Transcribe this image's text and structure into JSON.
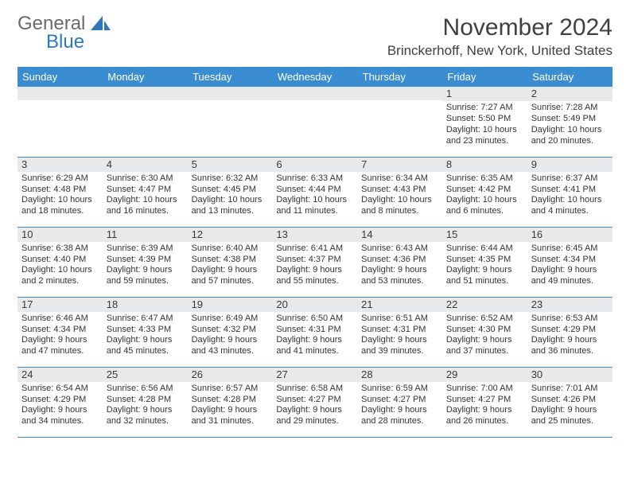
{
  "logo": {
    "word1": "General",
    "word2": "Blue",
    "shape_color": "#2d77bd"
  },
  "title": "November 2024",
  "location": "Brinckerhoff, New York, United States",
  "colors": {
    "header_bg": "#3a8dd0",
    "header_text": "#ffffff",
    "daynum_bg": "#e8e9ea",
    "divider": "#3a8dd0",
    "body_text": "#333333"
  },
  "fonts": {
    "title_size": 30,
    "location_size": 17,
    "dow_size": 13,
    "daynum_size": 13,
    "body_size": 11
  },
  "day_labels": [
    "Sunday",
    "Monday",
    "Tuesday",
    "Wednesday",
    "Thursday",
    "Friday",
    "Saturday"
  ],
  "weeks": [
    [
      {
        "n": "",
        "lines": [
          "",
          "",
          "",
          ""
        ]
      },
      {
        "n": "",
        "lines": [
          "",
          "",
          "",
          ""
        ]
      },
      {
        "n": "",
        "lines": [
          "",
          "",
          "",
          ""
        ]
      },
      {
        "n": "",
        "lines": [
          "",
          "",
          "",
          ""
        ]
      },
      {
        "n": "",
        "lines": [
          "",
          "",
          "",
          ""
        ]
      },
      {
        "n": "1",
        "lines": [
          "Sunrise: 7:27 AM",
          "Sunset: 5:50 PM",
          "Daylight: 10 hours",
          "and 23 minutes."
        ]
      },
      {
        "n": "2",
        "lines": [
          "Sunrise: 7:28 AM",
          "Sunset: 5:49 PM",
          "Daylight: 10 hours",
          "and 20 minutes."
        ]
      }
    ],
    [
      {
        "n": "3",
        "lines": [
          "Sunrise: 6:29 AM",
          "Sunset: 4:48 PM",
          "Daylight: 10 hours",
          "and 18 minutes."
        ]
      },
      {
        "n": "4",
        "lines": [
          "Sunrise: 6:30 AM",
          "Sunset: 4:47 PM",
          "Daylight: 10 hours",
          "and 16 minutes."
        ]
      },
      {
        "n": "5",
        "lines": [
          "Sunrise: 6:32 AM",
          "Sunset: 4:45 PM",
          "Daylight: 10 hours",
          "and 13 minutes."
        ]
      },
      {
        "n": "6",
        "lines": [
          "Sunrise: 6:33 AM",
          "Sunset: 4:44 PM",
          "Daylight: 10 hours",
          "and 11 minutes."
        ]
      },
      {
        "n": "7",
        "lines": [
          "Sunrise: 6:34 AM",
          "Sunset: 4:43 PM",
          "Daylight: 10 hours",
          "and 8 minutes."
        ]
      },
      {
        "n": "8",
        "lines": [
          "Sunrise: 6:35 AM",
          "Sunset: 4:42 PM",
          "Daylight: 10 hours",
          "and 6 minutes."
        ]
      },
      {
        "n": "9",
        "lines": [
          "Sunrise: 6:37 AM",
          "Sunset: 4:41 PM",
          "Daylight: 10 hours",
          "and 4 minutes."
        ]
      }
    ],
    [
      {
        "n": "10",
        "lines": [
          "Sunrise: 6:38 AM",
          "Sunset: 4:40 PM",
          "Daylight: 10 hours",
          "and 2 minutes."
        ]
      },
      {
        "n": "11",
        "lines": [
          "Sunrise: 6:39 AM",
          "Sunset: 4:39 PM",
          "Daylight: 9 hours",
          "and 59 minutes."
        ]
      },
      {
        "n": "12",
        "lines": [
          "Sunrise: 6:40 AM",
          "Sunset: 4:38 PM",
          "Daylight: 9 hours",
          "and 57 minutes."
        ]
      },
      {
        "n": "13",
        "lines": [
          "Sunrise: 6:41 AM",
          "Sunset: 4:37 PM",
          "Daylight: 9 hours",
          "and 55 minutes."
        ]
      },
      {
        "n": "14",
        "lines": [
          "Sunrise: 6:43 AM",
          "Sunset: 4:36 PM",
          "Daylight: 9 hours",
          "and 53 minutes."
        ]
      },
      {
        "n": "15",
        "lines": [
          "Sunrise: 6:44 AM",
          "Sunset: 4:35 PM",
          "Daylight: 9 hours",
          "and 51 minutes."
        ]
      },
      {
        "n": "16",
        "lines": [
          "Sunrise: 6:45 AM",
          "Sunset: 4:34 PM",
          "Daylight: 9 hours",
          "and 49 minutes."
        ]
      }
    ],
    [
      {
        "n": "17",
        "lines": [
          "Sunrise: 6:46 AM",
          "Sunset: 4:34 PM",
          "Daylight: 9 hours",
          "and 47 minutes."
        ]
      },
      {
        "n": "18",
        "lines": [
          "Sunrise: 6:47 AM",
          "Sunset: 4:33 PM",
          "Daylight: 9 hours",
          "and 45 minutes."
        ]
      },
      {
        "n": "19",
        "lines": [
          "Sunrise: 6:49 AM",
          "Sunset: 4:32 PM",
          "Daylight: 9 hours",
          "and 43 minutes."
        ]
      },
      {
        "n": "20",
        "lines": [
          "Sunrise: 6:50 AM",
          "Sunset: 4:31 PM",
          "Daylight: 9 hours",
          "and 41 minutes."
        ]
      },
      {
        "n": "21",
        "lines": [
          "Sunrise: 6:51 AM",
          "Sunset: 4:31 PM",
          "Daylight: 9 hours",
          "and 39 minutes."
        ]
      },
      {
        "n": "22",
        "lines": [
          "Sunrise: 6:52 AM",
          "Sunset: 4:30 PM",
          "Daylight: 9 hours",
          "and 37 minutes."
        ]
      },
      {
        "n": "23",
        "lines": [
          "Sunrise: 6:53 AM",
          "Sunset: 4:29 PM",
          "Daylight: 9 hours",
          "and 36 minutes."
        ]
      }
    ],
    [
      {
        "n": "24",
        "lines": [
          "Sunrise: 6:54 AM",
          "Sunset: 4:29 PM",
          "Daylight: 9 hours",
          "and 34 minutes."
        ]
      },
      {
        "n": "25",
        "lines": [
          "Sunrise: 6:56 AM",
          "Sunset: 4:28 PM",
          "Daylight: 9 hours",
          "and 32 minutes."
        ]
      },
      {
        "n": "26",
        "lines": [
          "Sunrise: 6:57 AM",
          "Sunset: 4:28 PM",
          "Daylight: 9 hours",
          "and 31 minutes."
        ]
      },
      {
        "n": "27",
        "lines": [
          "Sunrise: 6:58 AM",
          "Sunset: 4:27 PM",
          "Daylight: 9 hours",
          "and 29 minutes."
        ]
      },
      {
        "n": "28",
        "lines": [
          "Sunrise: 6:59 AM",
          "Sunset: 4:27 PM",
          "Daylight: 9 hours",
          "and 28 minutes."
        ]
      },
      {
        "n": "29",
        "lines": [
          "Sunrise: 7:00 AM",
          "Sunset: 4:27 PM",
          "Daylight: 9 hours",
          "and 26 minutes."
        ]
      },
      {
        "n": "30",
        "lines": [
          "Sunrise: 7:01 AM",
          "Sunset: 4:26 PM",
          "Daylight: 9 hours",
          "and 25 minutes."
        ]
      }
    ]
  ]
}
